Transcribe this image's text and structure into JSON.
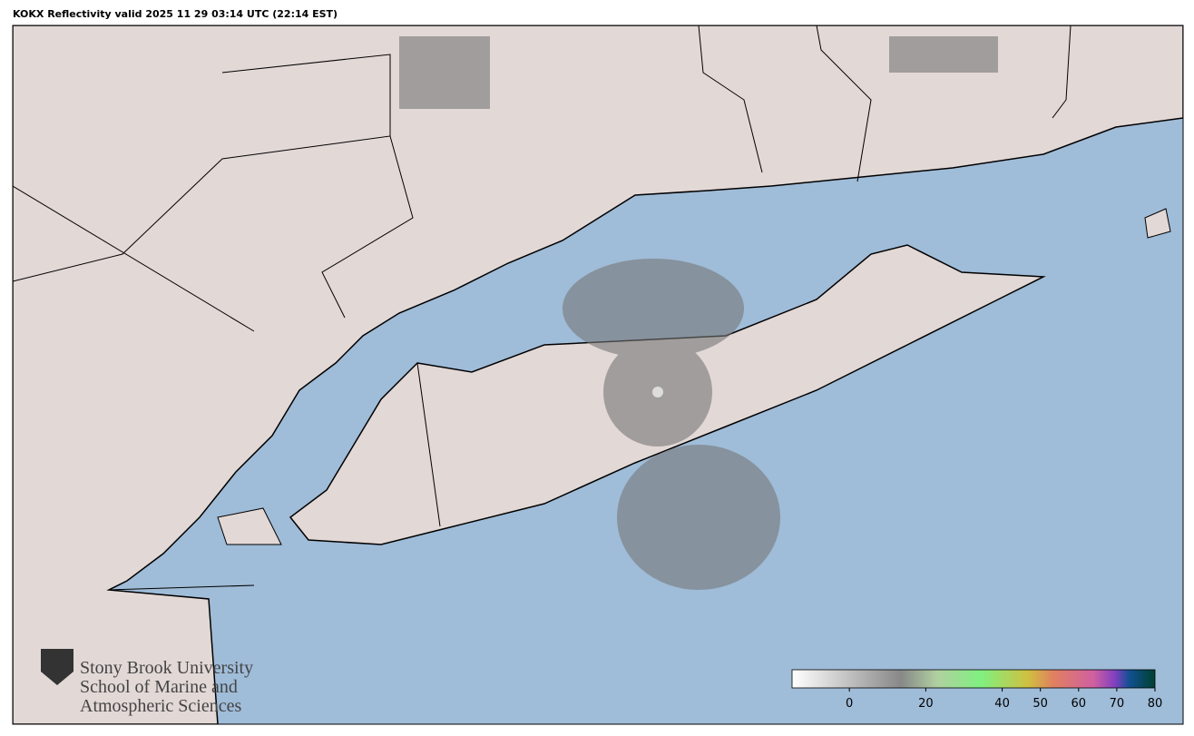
{
  "header": {
    "title": "KOKX Reflectivity valid 2025 11 29 03:14 UTC (22:14 EST)"
  },
  "logo": {
    "lines": [
      "Stony Brook University",
      "School of Marine and",
      "Atmospheric Sciences"
    ]
  },
  "colorbar": {
    "xlim": [
      -15,
      80
    ],
    "xticks": [
      0,
      20,
      40,
      50,
      60,
      70,
      80
    ]
  }
}
